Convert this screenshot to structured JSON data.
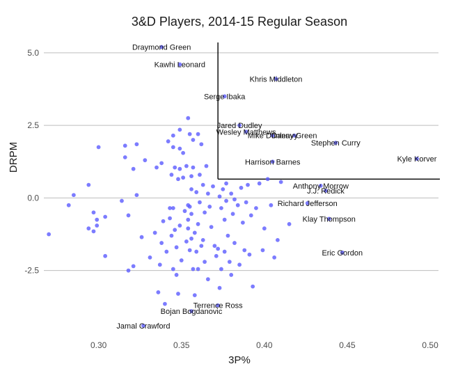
{
  "chart_data": {
    "type": "scatter",
    "title": "3&D Players, 2014-15 Regular Season",
    "xlabel": "3P%",
    "ylabel": "DRPM",
    "xlim": [
      0.267,
      0.505
    ],
    "ylim": [
      -4.45,
      5.5
    ],
    "x_ticks": [
      {
        "value": 0.3,
        "label": "0.30"
      },
      {
        "value": 0.35,
        "label": "0.35"
      },
      {
        "value": 0.4,
        "label": "0.40"
      },
      {
        "value": 0.45,
        "label": "0.45"
      },
      {
        "value": 0.5,
        "label": "0.50"
      }
    ],
    "y_ticks": [
      {
        "value": 5.0,
        "label": "5.0"
      },
      {
        "value": 2.5,
        "label": "2.5"
      },
      {
        "value": 0.0,
        "label": "0.0"
      },
      {
        "value": -2.5,
        "label": "-2.5"
      }
    ],
    "grid": "horizontal",
    "threshold": {
      "x": 0.372,
      "y": 0.65
    },
    "labeled_points": [
      {
        "name": "Draymond Green",
        "x": 0.338,
        "y": 5.2
      },
      {
        "name": "Kawhi Leonard",
        "x": 0.349,
        "y": 4.6
      },
      {
        "name": "Khris Middleton",
        "x": 0.407,
        "y": 4.1
      },
      {
        "name": "Serge Ibaka",
        "x": 0.376,
        "y": 3.5
      },
      {
        "name": "Jared Dudley",
        "x": 0.385,
        "y": 2.5
      },
      {
        "name": "Wesley Matthews",
        "x": 0.389,
        "y": 2.28
      },
      {
        "name": "Mike Dunleavy",
        "x": 0.405,
        "y": 2.15
      },
      {
        "name": "Danny Green",
        "x": 0.418,
        "y": 2.15
      },
      {
        "name": "Stephen Curry",
        "x": 0.443,
        "y": 1.9
      },
      {
        "name": "Kyle Korver",
        "x": 0.492,
        "y": 1.35
      },
      {
        "name": "Harrison Barnes",
        "x": 0.405,
        "y": 1.25
      },
      {
        "name": "Anthony Morrow",
        "x": 0.434,
        "y": 0.42
      },
      {
        "name": "J.J. Redick",
        "x": 0.437,
        "y": 0.25
      },
      {
        "name": "Richard Jefferson",
        "x": 0.426,
        "y": -0.18
      },
      {
        "name": "Klay Thompson",
        "x": 0.439,
        "y": -0.72
      },
      {
        "name": "Eric Gordon",
        "x": 0.447,
        "y": -1.88
      },
      {
        "name": "Terrence Ross",
        "x": 0.372,
        "y": -3.7
      },
      {
        "name": "Bojan Bogdanovic",
        "x": 0.356,
        "y": -3.9
      },
      {
        "name": "Jamal Crawford",
        "x": 0.327,
        "y": -4.4
      }
    ],
    "points": [
      {
        "x": 0.27,
        "y": -1.25
      },
      {
        "x": 0.282,
        "y": -0.25
      },
      {
        "x": 0.285,
        "y": 0.1
      },
      {
        "x": 0.294,
        "y": 0.45
      },
      {
        "x": 0.294,
        "y": -1.05
      },
      {
        "x": 0.297,
        "y": -0.5
      },
      {
        "x": 0.297,
        "y": -1.15
      },
      {
        "x": 0.299,
        "y": -0.75
      },
      {
        "x": 0.299,
        "y": -0.95
      },
      {
        "x": 0.3,
        "y": 1.75
      },
      {
        "x": 0.304,
        "y": -0.65
      },
      {
        "x": 0.304,
        "y": -2.0
      },
      {
        "x": 0.314,
        "y": -0.1
      },
      {
        "x": 0.316,
        "y": 1.8
      },
      {
        "x": 0.316,
        "y": 1.4
      },
      {
        "x": 0.318,
        "y": -2.5
      },
      {
        "x": 0.318,
        "y": -0.6
      },
      {
        "x": 0.321,
        "y": 1.0
      },
      {
        "x": 0.321,
        "y": -2.35
      },
      {
        "x": 0.323,
        "y": 1.85
      },
      {
        "x": 0.323,
        "y": 0.1
      },
      {
        "x": 0.326,
        "y": -1.35
      },
      {
        "x": 0.328,
        "y": 1.3
      },
      {
        "x": 0.331,
        "y": -2.05
      },
      {
        "x": 0.334,
        "y": -1.2
      },
      {
        "x": 0.335,
        "y": 1.05
      },
      {
        "x": 0.336,
        "y": -3.25
      },
      {
        "x": 0.337,
        "y": -2.3
      },
      {
        "x": 0.338,
        "y": 1.2
      },
      {
        "x": 0.338,
        "y": -1.55
      },
      {
        "x": 0.339,
        "y": -0.8
      },
      {
        "x": 0.34,
        "y": -3.65
      },
      {
        "x": 0.341,
        "y": -1.85
      },
      {
        "x": 0.342,
        "y": 1.95
      },
      {
        "x": 0.343,
        "y": -0.35
      },
      {
        "x": 0.343,
        "y": -0.7
      },
      {
        "x": 0.344,
        "y": 0.8
      },
      {
        "x": 0.344,
        "y": -1.3
      },
      {
        "x": 0.345,
        "y": 2.15
      },
      {
        "x": 0.345,
        "y": 1.75
      },
      {
        "x": 0.345,
        "y": -2.45
      },
      {
        "x": 0.345,
        "y": -0.35
      },
      {
        "x": 0.346,
        "y": 1.05
      },
      {
        "x": 0.346,
        "y": -1.1
      },
      {
        "x": 0.347,
        "y": -2.65
      },
      {
        "x": 0.347,
        "y": -1.7
      },
      {
        "x": 0.348,
        "y": 0.65
      },
      {
        "x": 0.348,
        "y": -3.3
      },
      {
        "x": 0.349,
        "y": 2.35
      },
      {
        "x": 0.349,
        "y": 1.7
      },
      {
        "x": 0.349,
        "y": 1.0
      },
      {
        "x": 0.349,
        "y": -0.95
      },
      {
        "x": 0.35,
        "y": -2.15
      },
      {
        "x": 0.351,
        "y": 1.55
      },
      {
        "x": 0.351,
        "y": 0.7
      },
      {
        "x": 0.352,
        "y": -0.45
      },
      {
        "x": 0.353,
        "y": 1.1
      },
      {
        "x": 0.353,
        "y": -1.5
      },
      {
        "x": 0.354,
        "y": 2.75
      },
      {
        "x": 0.354,
        "y": -0.25
      },
      {
        "x": 0.354,
        "y": -0.75
      },
      {
        "x": 0.354,
        "y": -1.05
      },
      {
        "x": 0.355,
        "y": 2.2
      },
      {
        "x": 0.355,
        "y": -0.3
      },
      {
        "x": 0.355,
        "y": -1.8
      },
      {
        "x": 0.356,
        "y": 0.75
      },
      {
        "x": 0.356,
        "y": 0.3
      },
      {
        "x": 0.356,
        "y": -0.55
      },
      {
        "x": 0.356,
        "y": -1.4
      },
      {
        "x": 0.357,
        "y": 2.0
      },
      {
        "x": 0.357,
        "y": 1.05
      },
      {
        "x": 0.357,
        "y": -2.45
      },
      {
        "x": 0.358,
        "y": -1.2
      },
      {
        "x": 0.358,
        "y": -3.35
      },
      {
        "x": 0.359,
        "y": 0.2
      },
      {
        "x": 0.359,
        "y": -1.85
      },
      {
        "x": 0.36,
        "y": 2.2
      },
      {
        "x": 0.36,
        "y": -0.9
      },
      {
        "x": 0.36,
        "y": -2.45
      },
      {
        "x": 0.361,
        "y": 0.8
      },
      {
        "x": 0.361,
        "y": -0.15
      },
      {
        "x": 0.362,
        "y": 1.85
      },
      {
        "x": 0.362,
        "y": -1.65
      },
      {
        "x": 0.363,
        "y": 0.45
      },
      {
        "x": 0.363,
        "y": -1.45
      },
      {
        "x": 0.364,
        "y": -0.5
      },
      {
        "x": 0.364,
        "y": -2.2
      },
      {
        "x": 0.365,
        "y": 1.1
      },
      {
        "x": 0.366,
        "y": 0.15
      },
      {
        "x": 0.367,
        "y": -0.3
      },
      {
        "x": 0.368,
        "y": -1.0
      },
      {
        "x": 0.369,
        "y": 0.4
      },
      {
        "x": 0.37,
        "y": -1.65
      },
      {
        "x": 0.371,
        "y": -2.0
      },
      {
        "x": 0.372,
        "y": -1.75
      },
      {
        "x": 0.373,
        "y": 0.05
      },
      {
        "x": 0.374,
        "y": -0.35
      },
      {
        "x": 0.374,
        "y": -2.45
      },
      {
        "x": 0.375,
        "y": 0.3
      },
      {
        "x": 0.376,
        "y": -0.75
      },
      {
        "x": 0.376,
        "y": -1.85
      },
      {
        "x": 0.377,
        "y": 0.5
      },
      {
        "x": 0.377,
        "y": -0.1
      },
      {
        "x": 0.378,
        "y": -1.3
      },
      {
        "x": 0.379,
        "y": -2.2
      },
      {
        "x": 0.38,
        "y": 0.15
      },
      {
        "x": 0.381,
        "y": -0.55
      },
      {
        "x": 0.382,
        "y": -1.55
      },
      {
        "x": 0.384,
        "y": -0.25
      },
      {
        "x": 0.385,
        "y": -2.3
      },
      {
        "x": 0.386,
        "y": 0.35
      },
      {
        "x": 0.387,
        "y": -0.85
      },
      {
        "x": 0.388,
        "y": -1.8
      },
      {
        "x": 0.389,
        "y": -0.15
      },
      {
        "x": 0.39,
        "y": 0.45
      },
      {
        "x": 0.391,
        "y": -1.95
      },
      {
        "x": 0.392,
        "y": -0.6
      },
      {
        "x": 0.393,
        "y": -3.05
      },
      {
        "x": 0.395,
        "y": -0.35
      },
      {
        "x": 0.397,
        "y": 0.5
      },
      {
        "x": 0.399,
        "y": -1.8
      },
      {
        "x": 0.4,
        "y": -1.05
      },
      {
        "x": 0.402,
        "y": 0.65
      },
      {
        "x": 0.404,
        "y": -0.25
      },
      {
        "x": 0.406,
        "y": -2.05
      },
      {
        "x": 0.408,
        "y": -1.45
      },
      {
        "x": 0.41,
        "y": 0.55
      },
      {
        "x": 0.415,
        "y": -0.9
      },
      {
        "x": 0.38,
        "y": -2.65
      },
      {
        "x": 0.373,
        "y": -3.1
      },
      {
        "x": 0.366,
        "y": -2.8
      },
      {
        "x": 0.382,
        "y": -0.05
      }
    ]
  }
}
